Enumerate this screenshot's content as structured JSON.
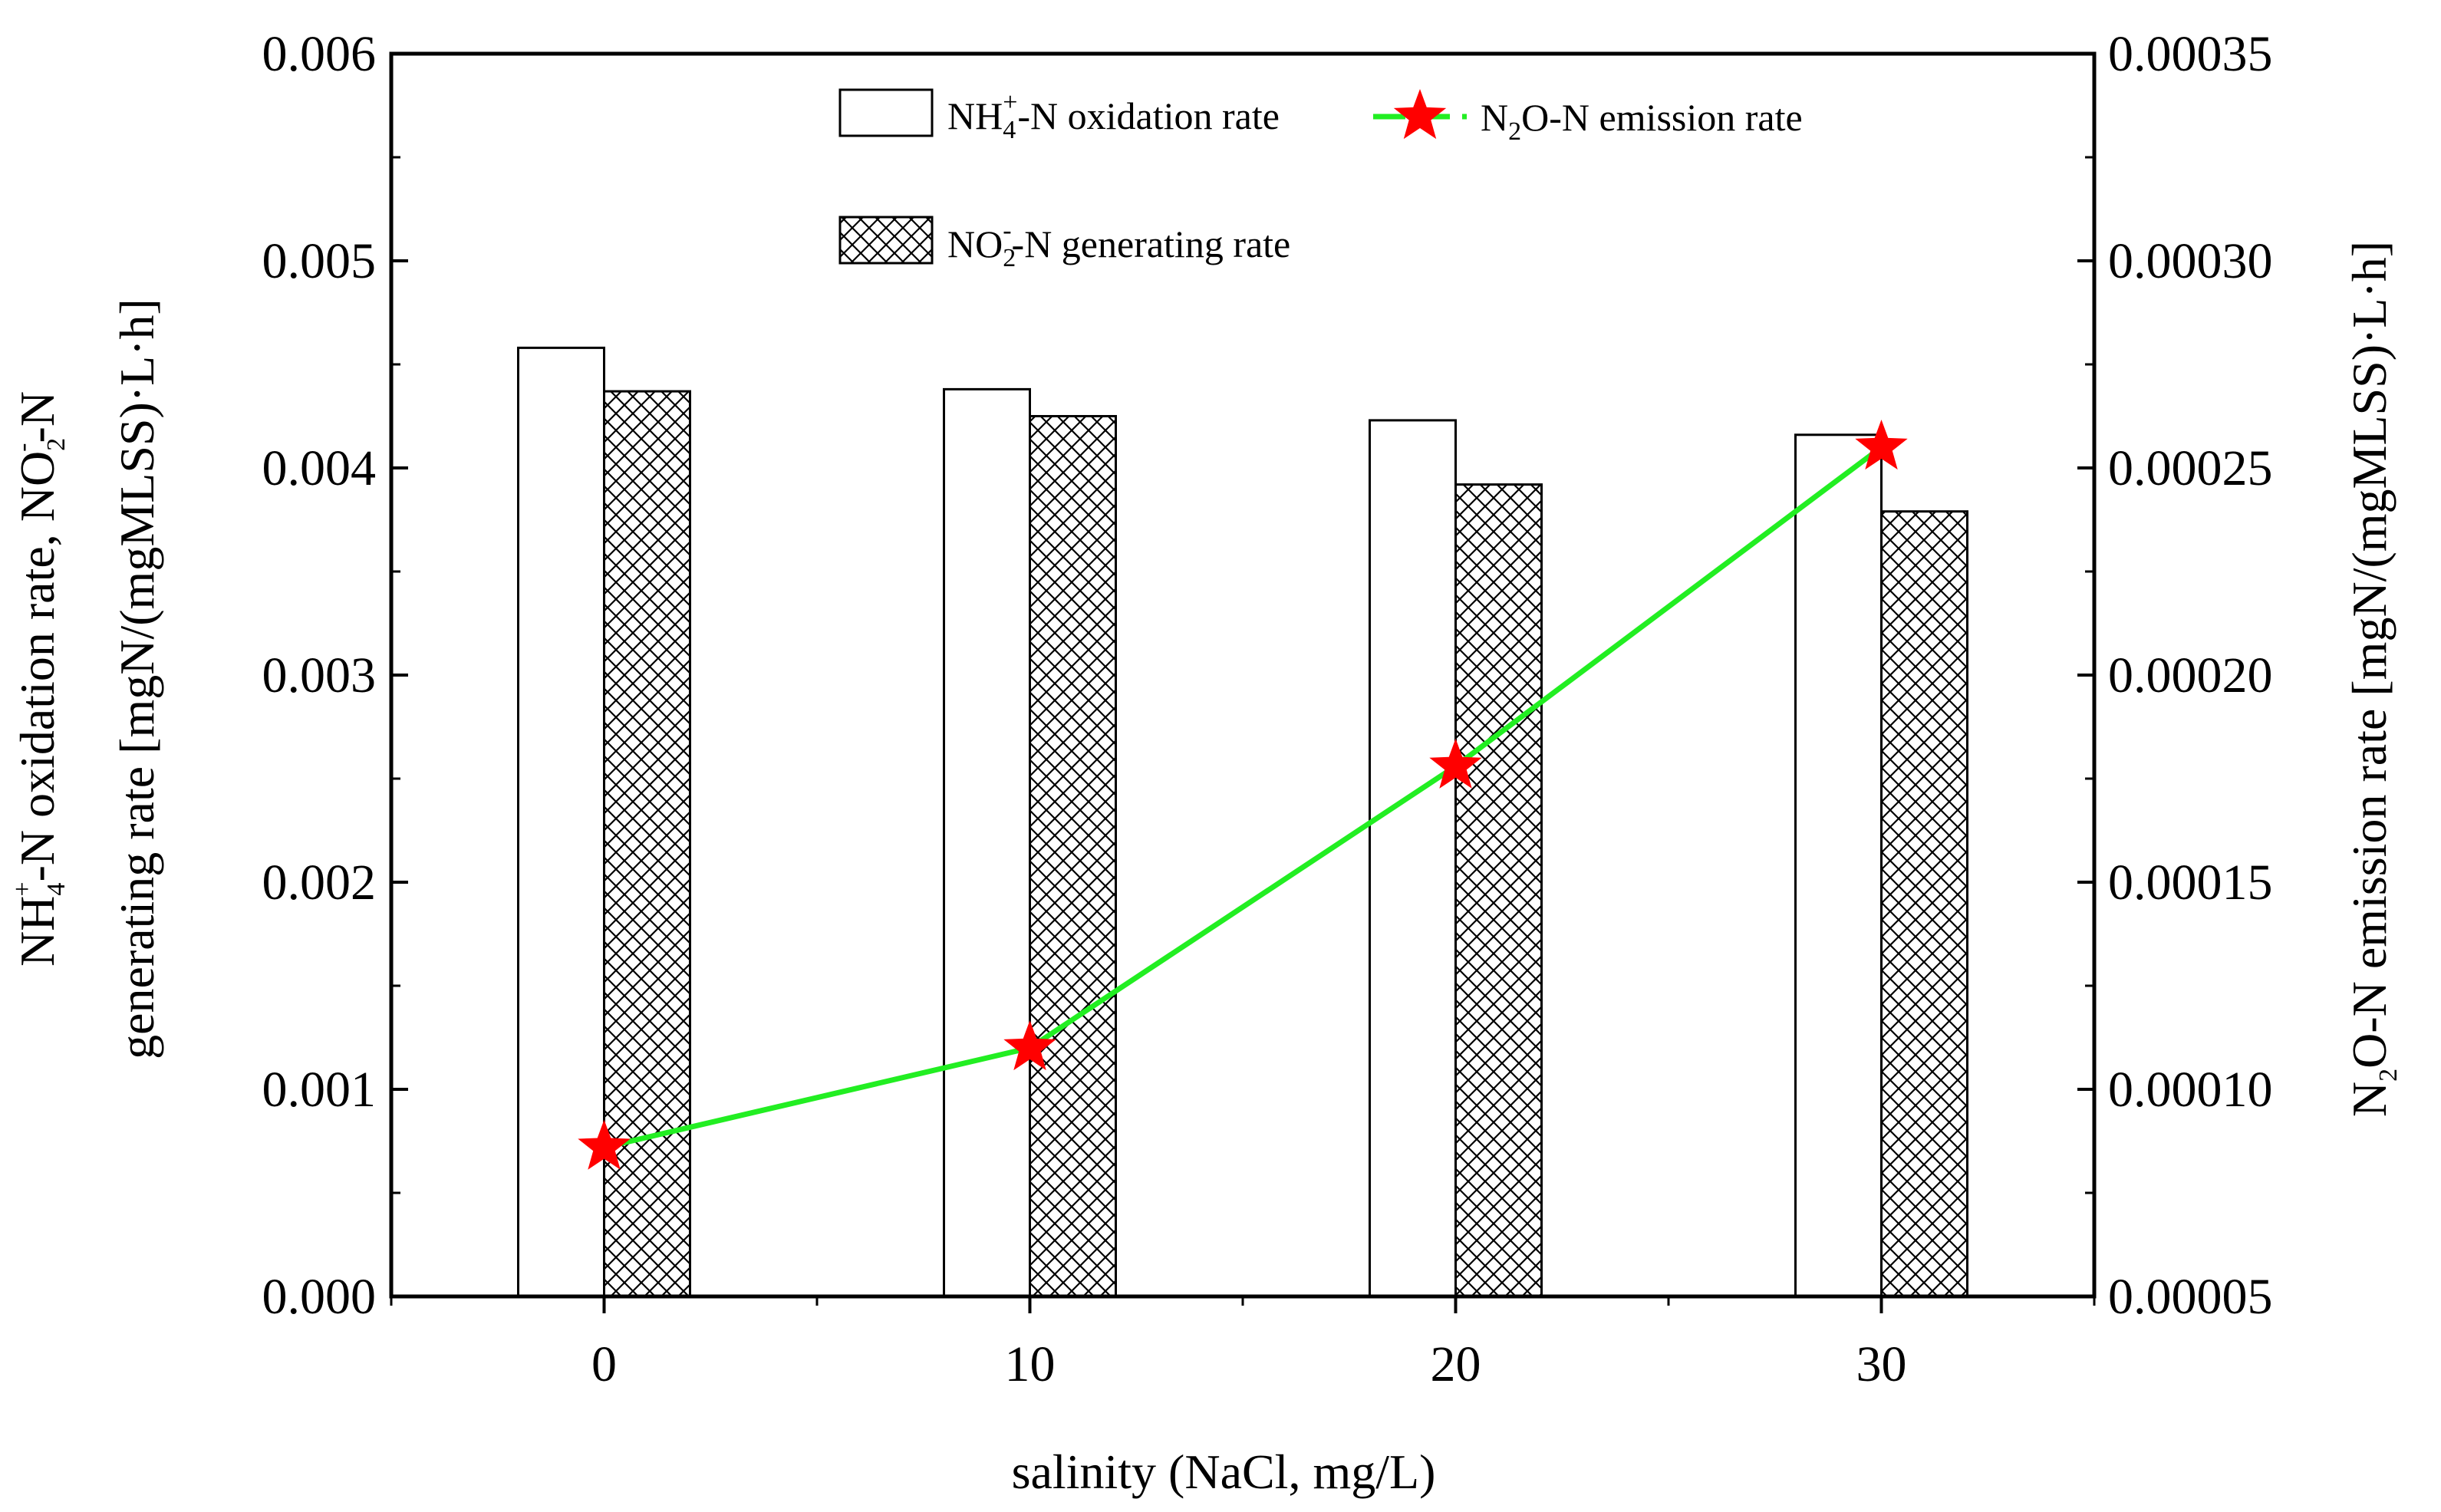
{
  "chart_data": {
    "type": "bar",
    "categories": [
      "0",
      "10",
      "20",
      "30"
    ],
    "x": [
      0,
      10,
      20,
      30
    ],
    "xlabel": "salinity (NaCl, mg/L)",
    "xlim": [
      -5,
      35
    ],
    "xticks": [
      "0",
      "10",
      "20",
      "30"
    ],
    "ylabel_left": {
      "line1": {
        "a": "NH",
        "sub": "4",
        "sup": "+",
        "b": "-N oxidation rate, NO",
        "sub2": "2",
        "sup2": "-",
        "c": "-N"
      },
      "line2": "generating rate [mgN/(mgMLSS)·L·h]"
    },
    "ylabel_right": {
      "a": "N",
      "sub": "2",
      "b": "O-N emission rate [mgN/(mgMLSS)·L·h]"
    },
    "ylim_left": [
      0,
      0.006
    ],
    "ylim_right": [
      5e-05,
      0.00035
    ],
    "yticks_left": [
      "0.000",
      "0.001",
      "0.002",
      "0.003",
      "0.004",
      "0.005",
      "0.006"
    ],
    "yticks_right": [
      "0.00005",
      "0.00010",
      "0.00015",
      "0.00020",
      "0.00025",
      "0.00030",
      "0.00035"
    ],
    "grid": false,
    "legend_position": "top",
    "series": [
      {
        "name": "NH4+-N oxidation rate",
        "type": "bar",
        "axis": "left",
        "pattern": "none",
        "values": [
          0.00458,
          0.00438,
          0.00423,
          0.00416
        ]
      },
      {
        "name": "NO2--N generating rate",
        "type": "bar",
        "axis": "left",
        "pattern": "crosshatch",
        "values": [
          0.00437,
          0.00425,
          0.00392,
          0.00379
        ]
      },
      {
        "name": "N2O-N emission rate",
        "type": "line",
        "axis": "right",
        "marker": "star",
        "values": [
          8.6e-05,
          0.00011,
          0.000178,
          0.000255
        ]
      }
    ],
    "legend": {
      "nh4": {
        "a": "NH",
        "sub": "4",
        "sup": "+",
        "b": "-N oxidation rate"
      },
      "n2o": {
        "a": "N",
        "sub": "2",
        "b": "O-N  emission rate"
      },
      "no2": {
        "a": "NO",
        "sub": "2",
        "sup": "-",
        "b": "-N generating rate"
      }
    },
    "colors": {
      "line": "#22ee22",
      "marker": "#ff0000",
      "bar_edge": "#000000",
      "bar_fill": "#ffffff"
    }
  }
}
